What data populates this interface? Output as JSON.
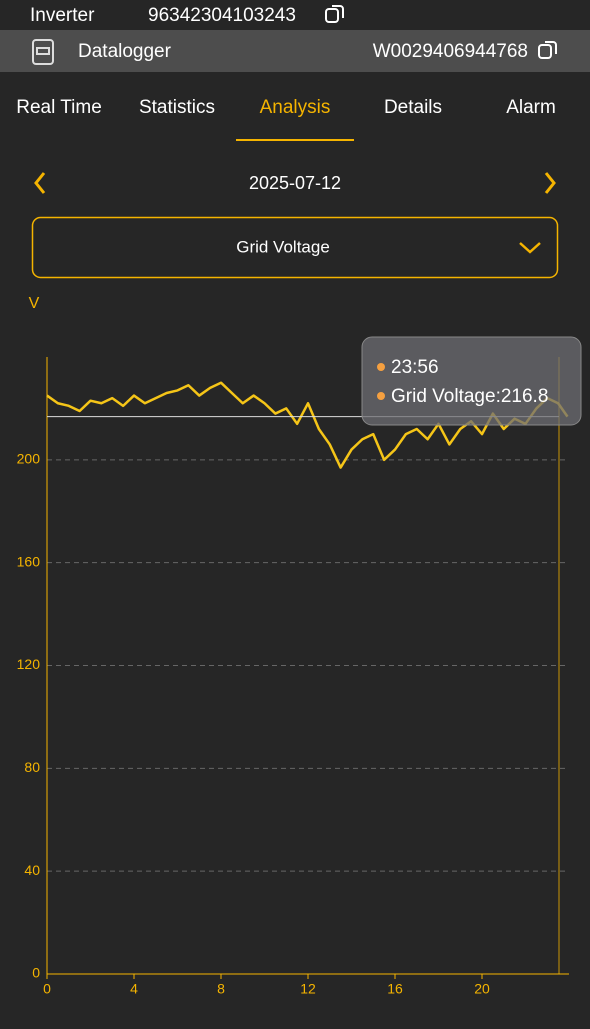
{
  "header": {
    "inverter_label": "Inverter",
    "inverter_sn": "96342304103243",
    "datalogger_label": "Datalogger",
    "datalogger_sn": "W0029406944768"
  },
  "tabs": {
    "items": [
      "Real Time",
      "Statistics",
      "Analysis",
      "Details",
      "Alarm"
    ],
    "active": 2
  },
  "date": "2025-07-12",
  "selector": "Grid Voltage",
  "chart_data": {
    "type": "line",
    "ylabel": "V",
    "color": "#f5c518",
    "x": [
      0,
      0.5,
      1,
      1.5,
      2,
      2.5,
      3,
      3.5,
      4,
      4.5,
      5,
      5.5,
      6,
      6.5,
      7,
      7.5,
      8,
      8.5,
      9,
      9.5,
      10,
      10.5,
      11,
      11.5,
      12,
      12.5,
      13,
      13.5,
      14,
      14.5,
      15,
      15.5,
      16,
      16.5,
      17,
      17.5,
      18,
      18.5,
      19,
      19.5,
      20,
      20.5,
      21,
      21.5,
      22,
      22.5,
      23,
      23.5,
      23.93
    ],
    "values": [
      225,
      222,
      221,
      219,
      223,
      222,
      224,
      221,
      225,
      222,
      224,
      226,
      227,
      229,
      225,
      228,
      230,
      226,
      222,
      225,
      222,
      218,
      220,
      214,
      222,
      212,
      206,
      197,
      204,
      208,
      210,
      200,
      204,
      210,
      212,
      208,
      214,
      206,
      212,
      215,
      210,
      218,
      212,
      216,
      214,
      220,
      224,
      222,
      216.8
    ],
    "xlim": [
      0,
      24
    ],
    "xticks": [
      0,
      4,
      8,
      12,
      16,
      20
    ],
    "ylim": [
      0,
      240
    ],
    "yticks": [
      0,
      40,
      80,
      120,
      160,
      200
    ],
    "grid": true,
    "tooltip": {
      "time": "23:56",
      "text": "Grid Voltage:216.8",
      "value": 216.8
    }
  }
}
